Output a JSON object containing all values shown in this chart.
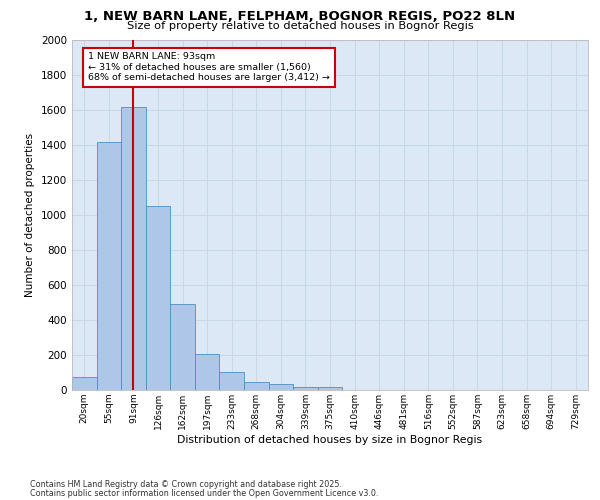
{
  "title": "1, NEW BARN LANE, FELPHAM, BOGNOR REGIS, PO22 8LN",
  "subtitle": "Size of property relative to detached houses in Bognor Regis",
  "xlabel": "Distribution of detached houses by size in Bognor Regis",
  "ylabel": "Number of detached properties",
  "categories": [
    "20sqm",
    "55sqm",
    "91sqm",
    "126sqm",
    "162sqm",
    "197sqm",
    "233sqm",
    "268sqm",
    "304sqm",
    "339sqm",
    "375sqm",
    "410sqm",
    "446sqm",
    "481sqm",
    "516sqm",
    "552sqm",
    "587sqm",
    "623sqm",
    "658sqm",
    "694sqm",
    "729sqm"
  ],
  "values": [
    75,
    1420,
    1620,
    1050,
    490,
    205,
    105,
    45,
    35,
    20,
    18,
    0,
    0,
    0,
    0,
    0,
    0,
    0,
    0,
    0,
    0
  ],
  "bar_color": "#aec6e8",
  "bar_edge_color": "#4a90c4",
  "grid_color": "#c8d8e8",
  "bg_color": "#dce8f5",
  "vline_x": 2,
  "vline_color": "#cc0000",
  "annotation_text": "1 NEW BARN LANE: 93sqm\n← 31% of detached houses are smaller (1,560)\n68% of semi-detached houses are larger (3,412) →",
  "annotation_box_color": "#cc0000",
  "footer1": "Contains HM Land Registry data © Crown copyright and database right 2025.",
  "footer2": "Contains public sector information licensed under the Open Government Licence v3.0.",
  "ylim": [
    0,
    2000
  ],
  "yticks": [
    0,
    200,
    400,
    600,
    800,
    1000,
    1200,
    1400,
    1600,
    1800,
    2000
  ]
}
